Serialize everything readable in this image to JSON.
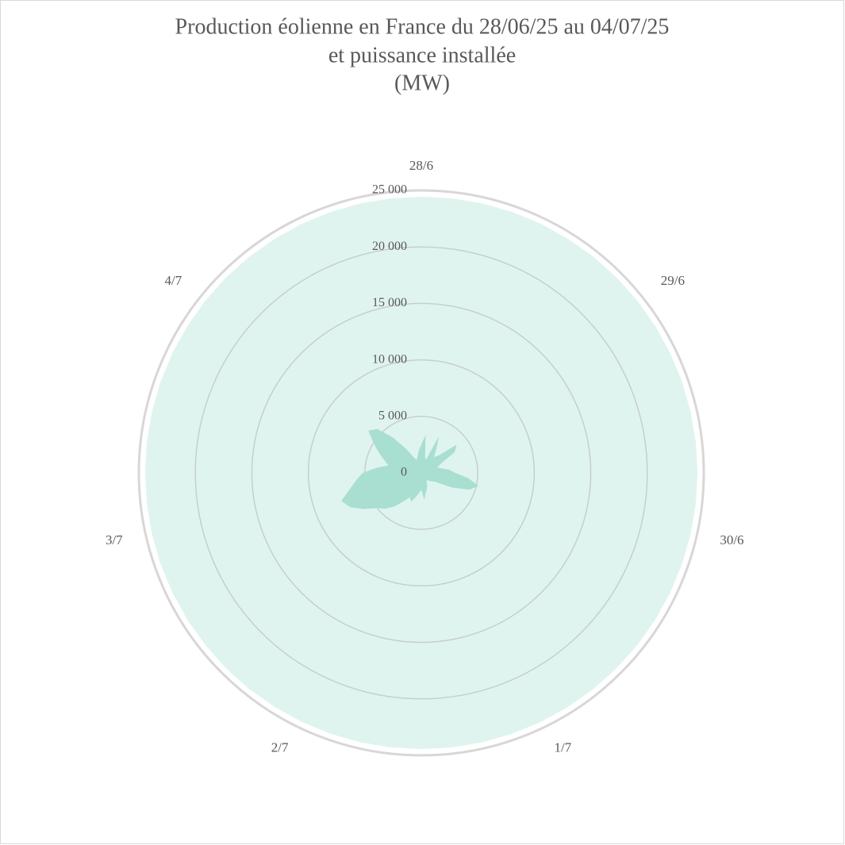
{
  "chart_data": {
    "type": "radar",
    "title": "Production éolienne en France du 28/06/25 au 04/07/25",
    "subtitle": "et puissance installée",
    "unit": "(MW)",
    "categories": [
      "28/6",
      null,
      null,
      null,
      null,
      null,
      null,
      null,
      "29/6",
      null,
      null,
      null,
      null,
      null,
      null,
      null,
      "30/6",
      null,
      null,
      null,
      null,
      null,
      null,
      null,
      "1/7",
      null,
      null,
      null,
      null,
      null,
      null,
      null,
      "2/7",
      null,
      null,
      null,
      null,
      null,
      null,
      null,
      "3/7",
      null,
      null,
      null,
      null,
      null,
      null,
      null,
      "4/7",
      null,
      null,
      null,
      null,
      null,
      null,
      null
    ],
    "series": [
      {
        "color": "#e0f4ef",
        "values": [
          24450,
          24450,
          24450,
          24450,
          24450,
          24450,
          24450,
          24450,
          24450,
          24450,
          24450,
          24450,
          24450,
          24450,
          24450,
          24450,
          24450,
          24450,
          24450,
          24450,
          24450,
          24450,
          24450,
          24450,
          24450,
          24450,
          24450,
          24450,
          24450,
          24450,
          24450,
          24450,
          24450,
          24450,
          24450,
          24450,
          24450,
          24450,
          24450,
          24450,
          24450,
          24450,
          24450,
          24450,
          24450,
          24450,
          24450,
          24450,
          24450,
          24450,
          24450,
          24450,
          24450,
          24450,
          24450,
          24450
        ]
      },
      {
        "color": "#a8dfd1",
        "values": [
          2500,
          3400,
          1500,
          1200,
          3600,
          2500,
          1800,
          2200,
          4000,
          3500,
          2000,
          1500,
          1800,
          2500,
          3000,
          4200,
          5200,
          4500,
          3000,
          1500,
          1200,
          1000,
          800,
          900,
          1200,
          1500,
          1800,
          2400,
          1500,
          1800,
          2200,
          2700,
          2400,
          3000,
          3800,
          4500,
          5000,
          6000,
          7000,
          7500,
          6500,
          5800,
          5200,
          4000,
          3000,
          3500,
          4200,
          5000,
          6000,
          5500,
          4000,
          2500,
          1500,
          1200,
          1500,
          2000
        ]
      }
    ],
    "ylim": [
      0,
      25000
    ],
    "yticks": [
      0,
      {
        "value": 5000,
        "label": "5 000"
      },
      {
        "value": 10000,
        "label": "10 000"
      },
      {
        "value": 15000,
        "label": "15 000"
      },
      {
        "value": 20000,
        "label": "20 000"
      },
      {
        "value": 25000,
        "label": "25 000"
      }
    ],
    "grid": true
  }
}
